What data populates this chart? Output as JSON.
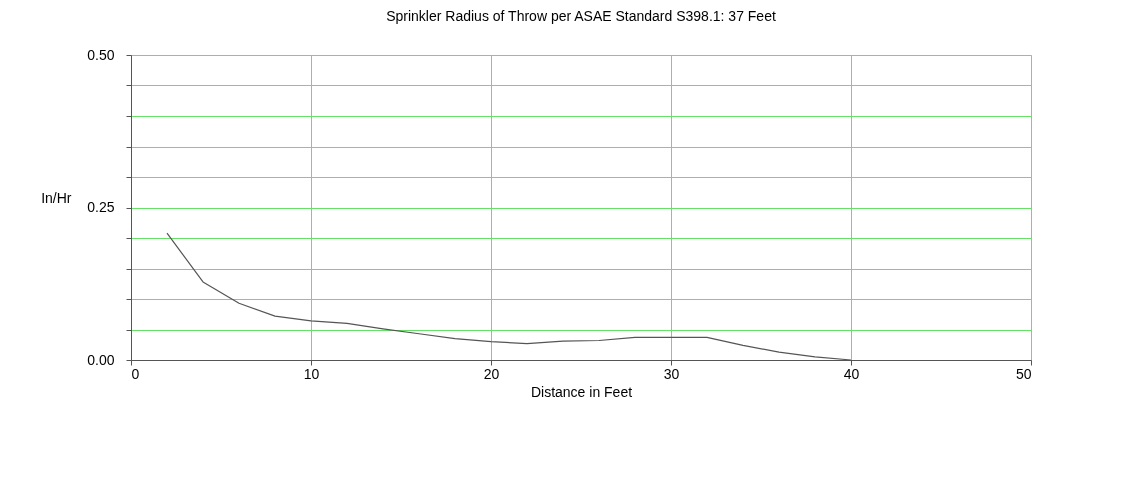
{
  "chart_data": {
    "type": "line",
    "title": "Sprinkler Radius of Throw per ASAE Standard S398.1: 37 Feet",
    "xlabel": "Distance in Feet",
    "ylabel": "In/Hr",
    "x": [
      2,
      4,
      6,
      8,
      10,
      12,
      14,
      16,
      18,
      20,
      22,
      24,
      26,
      28,
      30,
      32,
      34,
      36,
      38,
      40
    ],
    "series": [
      {
        "color": "#555555",
        "values": [
          0.208,
          0.128,
          0.093,
          0.072,
          0.064,
          0.06,
          0.051,
          0.043,
          0.035,
          0.03,
          0.027,
          0.031,
          0.032,
          0.037,
          0.037,
          0.037,
          0.024,
          0.013,
          0.005,
          0.0
        ]
      }
    ],
    "xlim": [
      0,
      50
    ],
    "xticks": [
      0,
      10,
      20,
      30,
      40,
      50
    ],
    "ylim": [
      0,
      0.5
    ],
    "yticks": [
      "0.00",
      {
        "value": 0.05,
        "label": null
      },
      {
        "value": 0.1,
        "label": null
      },
      {
        "value": 0.15,
        "label": null
      },
      {
        "value": 0.2,
        "label": null
      },
      {
        "value": 0.25,
        "label": "0.25"
      },
      {
        "value": 0.3,
        "label": null
      },
      {
        "value": 0.35,
        "label": null
      },
      {
        "value": 0.4,
        "label": null
      },
      {
        "value": 0.45,
        "label": null
      },
      {
        "value": 0.5,
        "label": "0.50"
      }
    ],
    "grid": true,
    "marker": "none",
    "line_style": "solid"
  }
}
